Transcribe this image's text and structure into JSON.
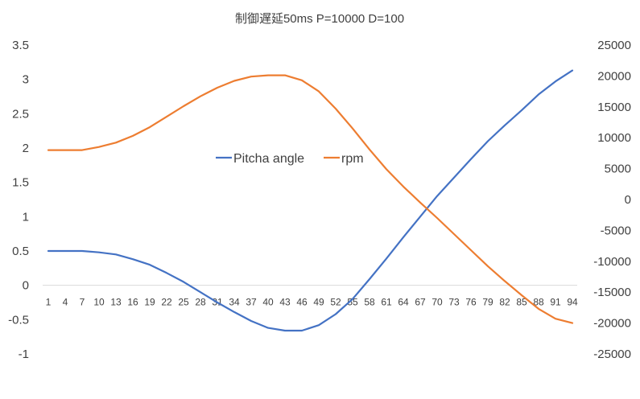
{
  "chart_data": {
    "type": "line",
    "title": "制御遅延50ms P=10000 D=100",
    "xlabel": "",
    "ylabel": "",
    "x_tick_labels": [
      "1",
      "4",
      "7",
      "10",
      "13",
      "16",
      "19",
      "22",
      "25",
      "28",
      "31",
      "34",
      "37",
      "40",
      "43",
      "46",
      "49",
      "52",
      "55",
      "58",
      "61",
      "64",
      "67",
      "70",
      "73",
      "76",
      "79",
      "82",
      "85",
      "88",
      "91",
      "94"
    ],
    "y_left": {
      "min": -1,
      "max": 3.5,
      "step": 0.5,
      "ticks": [
        "3.5",
        "3",
        "2.5",
        "2",
        "1.5",
        "1",
        "0.5",
        "0",
        "-0.5",
        "-1"
      ]
    },
    "y_right": {
      "min": -25000,
      "max": 25000,
      "step": 5000,
      "ticks": [
        "25000",
        "20000",
        "15000",
        "10000",
        "5000",
        "0",
        "-5000",
        "-10000",
        "-15000",
        "-20000",
        "-25000"
      ]
    },
    "legend_position": "center",
    "grid": false,
    "series": [
      {
        "name": "Pitcha angle",
        "axis": "left",
        "color": "#4472C4",
        "points": [
          [
            1,
            0.5
          ],
          [
            4,
            0.5
          ],
          [
            7,
            0.5
          ],
          [
            10,
            0.48
          ],
          [
            13,
            0.45
          ],
          [
            16,
            0.38
          ],
          [
            19,
            0.3
          ],
          [
            22,
            0.18
          ],
          [
            25,
            0.05
          ],
          [
            28,
            -0.1
          ],
          [
            31,
            -0.25
          ],
          [
            34,
            -0.39
          ],
          [
            37,
            -0.52
          ],
          [
            40,
            -0.62
          ],
          [
            43,
            -0.66
          ],
          [
            46,
            -0.66
          ],
          [
            49,
            -0.58
          ],
          [
            52,
            -0.42
          ],
          [
            55,
            -0.2
          ],
          [
            58,
            0.09
          ],
          [
            61,
            0.39
          ],
          [
            64,
            0.7
          ],
          [
            67,
            1.0
          ],
          [
            70,
            1.3
          ],
          [
            73,
            1.57
          ],
          [
            76,
            1.84
          ],
          [
            79,
            2.1
          ],
          [
            82,
            2.33
          ],
          [
            85,
            2.55
          ],
          [
            88,
            2.78
          ],
          [
            91,
            2.97
          ],
          [
            94,
            3.13
          ]
        ]
      },
      {
        "name": "rpm",
        "axis": "right",
        "color": "#ED7D31",
        "points": [
          [
            1,
            8000
          ],
          [
            4,
            8000
          ],
          [
            7,
            8000
          ],
          [
            10,
            8500
          ],
          [
            13,
            9200
          ],
          [
            16,
            10300
          ],
          [
            19,
            11700
          ],
          [
            22,
            13400
          ],
          [
            25,
            15100
          ],
          [
            28,
            16700
          ],
          [
            31,
            18100
          ],
          [
            34,
            19200
          ],
          [
            37,
            19900
          ],
          [
            40,
            20100
          ],
          [
            43,
            20100
          ],
          [
            46,
            19300
          ],
          [
            49,
            17500
          ],
          [
            52,
            14700
          ],
          [
            55,
            11500
          ],
          [
            58,
            8100
          ],
          [
            61,
            4900
          ],
          [
            64,
            2100
          ],
          [
            67,
            -500
          ],
          [
            70,
            -3000
          ],
          [
            73,
            -5600
          ],
          [
            76,
            -8200
          ],
          [
            79,
            -10800
          ],
          [
            82,
            -13200
          ],
          [
            85,
            -15500
          ],
          [
            88,
            -17700
          ],
          [
            91,
            -19300
          ],
          [
            94,
            -20000
          ]
        ]
      }
    ]
  }
}
